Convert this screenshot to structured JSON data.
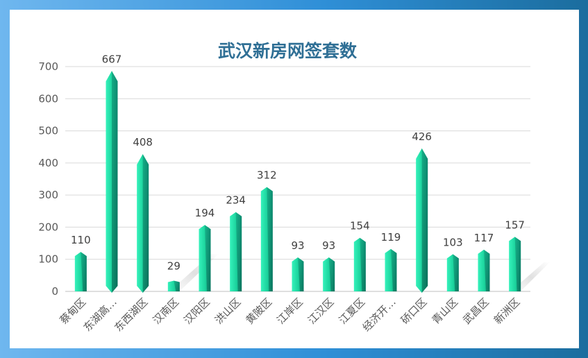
{
  "chart_data": {
    "type": "bar",
    "title": "武汉新房网签套数",
    "categories": [
      "蔡甸区",
      "东湖高…",
      "东西湖区",
      "汉南区",
      "汉阳区",
      "洪山区",
      "黄陂区",
      "江岸区",
      "江汉区",
      "江夏区",
      "经济开…",
      "硚口区",
      "青山区",
      "武昌区",
      "新洲区"
    ],
    "values": [
      110,
      667,
      408,
      29,
      194,
      234,
      312,
      93,
      93,
      154,
      119,
      426,
      103,
      117,
      157
    ],
    "ylim": [
      0,
      700
    ],
    "yticks": [
      0,
      100,
      200,
      300,
      400,
      500,
      600,
      700
    ],
    "grid": true,
    "legend": "none",
    "colors": {
      "bar_light": "#2ef0b4",
      "bar_mid": "#16c592",
      "bar_dark": "#0a7a66",
      "grid": "#d9d9d9",
      "axis": "#bfbfbf",
      "title": "#2f6f95",
      "frame_left": "#6fb7ef",
      "frame_right": "#1b6d9e"
    }
  }
}
